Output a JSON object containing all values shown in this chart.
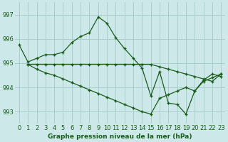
{
  "title": "Graphe pression niveau de la mer (hPa)",
  "bg_color": "#cce8e8",
  "grid_color": "#aacfcf",
  "line_color": "#1a5c1a",
  "xlim": [
    -0.5,
    23.5
  ],
  "ylim": [
    992.5,
    997.5
  ],
  "yticks": [
    993,
    994,
    995,
    996,
    997
  ],
  "xtick_labels": [
    "0",
    "1",
    "2",
    "3",
    "4",
    "5",
    "6",
    "7",
    "8",
    "9",
    "10",
    "11",
    "12",
    "13",
    "14",
    "15",
    "16",
    "17",
    "18",
    "19",
    "20",
    "21",
    "22",
    "23"
  ],
  "series1_x": [
    0,
    1,
    2,
    3,
    4,
    5,
    6,
    7,
    8,
    9,
    10,
    11,
    12,
    13,
    14,
    15,
    16,
    17,
    18,
    19,
    20,
    21,
    22,
    23
  ],
  "series1_y": [
    995.75,
    995.05,
    995.2,
    995.35,
    995.35,
    995.45,
    995.85,
    996.1,
    996.25,
    996.9,
    996.65,
    996.05,
    995.6,
    995.2,
    994.8,
    993.65,
    994.65,
    993.35,
    993.3,
    992.9,
    993.85,
    994.3,
    994.55,
    994.45
  ],
  "series2_x": [
    1,
    2,
    3,
    4,
    5,
    6,
    7,
    8,
    9,
    10,
    11,
    12,
    13,
    14,
    15,
    16,
    17,
    18,
    19,
    20,
    21,
    22,
    23
  ],
  "series2_y": [
    994.95,
    994.95,
    994.95,
    994.95,
    994.95,
    994.95,
    994.95,
    994.95,
    994.95,
    994.95,
    994.95,
    994.95,
    994.95,
    994.95,
    994.95,
    994.85,
    994.75,
    994.65,
    994.55,
    994.45,
    994.35,
    994.25,
    994.55
  ],
  "series3_x": [
    1,
    2,
    3,
    4,
    5,
    6,
    7,
    8,
    9,
    10,
    11,
    12,
    13,
    14,
    15,
    16,
    17,
    18,
    19,
    20,
    21,
    22,
    23
  ],
  "series3_y": [
    994.95,
    994.75,
    994.6,
    994.5,
    994.35,
    994.2,
    994.05,
    993.9,
    993.75,
    993.6,
    993.45,
    993.3,
    993.15,
    993.0,
    992.9,
    993.55,
    993.7,
    993.85,
    994.0,
    993.85,
    994.25,
    994.4,
    994.55
  ]
}
